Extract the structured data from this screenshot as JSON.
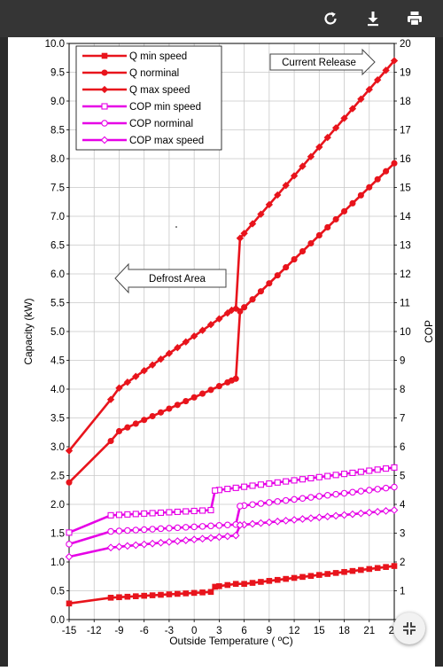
{
  "toolbar": {
    "buttons": [
      {
        "name": "refresh",
        "icon": "refresh-icon"
      },
      {
        "name": "download",
        "icon": "download-icon"
      },
      {
        "name": "print",
        "icon": "print-icon"
      }
    ]
  },
  "fab": {
    "icon": "fit-screen-icon"
  },
  "chart_data": {
    "type": "line",
    "title": "",
    "xlabel": "Outside Temperature ( ºC)",
    "ylabel": "Capacity (kW)",
    "y2label": "COP",
    "xlim": [
      -15,
      24
    ],
    "ylim": [
      0,
      10
    ],
    "y2lim": [
      0,
      20
    ],
    "x_ticks": [
      "-15",
      "-12",
      "-9",
      "-6",
      "-3",
      "0",
      "3",
      "6",
      "9",
      "12",
      "15",
      "18",
      "21",
      "24"
    ],
    "y_ticks": [
      "0.0",
      "0.5",
      "1.0",
      "1.5",
      "2.0",
      "2.5",
      "3.0",
      "3.5",
      "4.0",
      "4.5",
      "5.0",
      "5.5",
      "6.0",
      "6.5",
      "7.0",
      "7.5",
      "8.0",
      "8.5",
      "9.0",
      "9.5",
      "10.0"
    ],
    "y2_ticks": [
      "0",
      "1",
      "2",
      "3",
      "4",
      "5",
      "6",
      "7",
      "8",
      "9",
      "10",
      "11",
      "12",
      "13",
      "14",
      "15",
      "16",
      "17",
      "18",
      "19",
      "20"
    ],
    "grid": true,
    "legend_position": "top-left",
    "series": [
      {
        "name": "Q min speed",
        "axis": "left",
        "color": "#e8141c",
        "marker": "square",
        "x": [
          -15,
          -10,
          2,
          2.5,
          5,
          6,
          24
        ],
        "y": [
          0.28,
          0.38,
          0.48,
          0.57,
          0.62,
          0.62,
          0.93
        ]
      },
      {
        "name": "Q norminal",
        "axis": "left",
        "color": "#e8141c",
        "marker": "circle",
        "x": [
          -15,
          -10,
          -9,
          4.5,
          5,
          5.5,
          24
        ],
        "y": [
          2.38,
          3.1,
          3.27,
          4.15,
          4.18,
          5.35,
          7.92
        ]
      },
      {
        "name": "Q max speed",
        "axis": "left",
        "color": "#e8141c",
        "marker": "diamond",
        "x": [
          -15,
          -10,
          -9,
          4.5,
          5,
          5.5,
          24
        ],
        "y": [
          2.93,
          3.82,
          4.02,
          5.37,
          5.4,
          6.62,
          9.7
        ]
      },
      {
        "name": "COP min speed",
        "axis": "right",
        "color": "#e600e6",
        "marker": "square-open",
        "x": [
          -15,
          -10,
          2,
          2.5,
          24
        ],
        "y": [
          3.02,
          3.62,
          3.8,
          4.48,
          5.28
        ]
      },
      {
        "name": "COP norminal",
        "axis": "right",
        "color": "#e600e6",
        "marker": "circle-open",
        "x": [
          -15,
          -10,
          5,
          5.5,
          24
        ],
        "y": [
          2.62,
          3.06,
          3.3,
          3.94,
          4.6
        ]
      },
      {
        "name": "COP max speed",
        "axis": "right",
        "color": "#e600e6",
        "marker": "diamond-open",
        "x": [
          -15,
          -10,
          5,
          5.5,
          24
        ],
        "y": [
          2.18,
          2.5,
          2.92,
          3.28,
          3.8
        ]
      }
    ],
    "annotations": [
      {
        "text": "Current Release",
        "direction": "right"
      },
      {
        "text": "Defrost Area",
        "direction": "left"
      }
    ]
  }
}
